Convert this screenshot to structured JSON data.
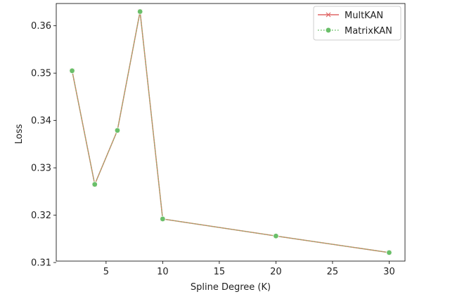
{
  "chart_data": {
    "type": "line",
    "title": "",
    "xlabel": "Spline Degree (K)",
    "ylabel": "Loss",
    "xlim": [
      0.6,
      31.4
    ],
    "ylim": [
      0.3103,
      0.3647
    ],
    "xticks": [
      5,
      10,
      15,
      20,
      25,
      30
    ],
    "yticks": [
      0.31,
      0.32,
      0.33,
      0.34,
      0.35,
      0.36
    ],
    "x": [
      2,
      4,
      6,
      8,
      10,
      20,
      30
    ],
    "series": [
      {
        "name": "MultKAN",
        "values": [
          0.3505,
          0.3265,
          0.3379,
          0.363,
          0.3192,
          0.3156,
          0.3121
        ],
        "color": "#e06666",
        "marker": "x",
        "linestyle": "solid"
      },
      {
        "name": "MatrixKAN",
        "values": [
          0.3505,
          0.3265,
          0.3379,
          0.363,
          0.3192,
          0.3156,
          0.3121
        ],
        "color": "#6abf69",
        "marker": "circle",
        "linestyle": "dotted"
      }
    ],
    "legend": "top-right",
    "grid": false,
    "overlap_line_color": "#c8896a"
  }
}
